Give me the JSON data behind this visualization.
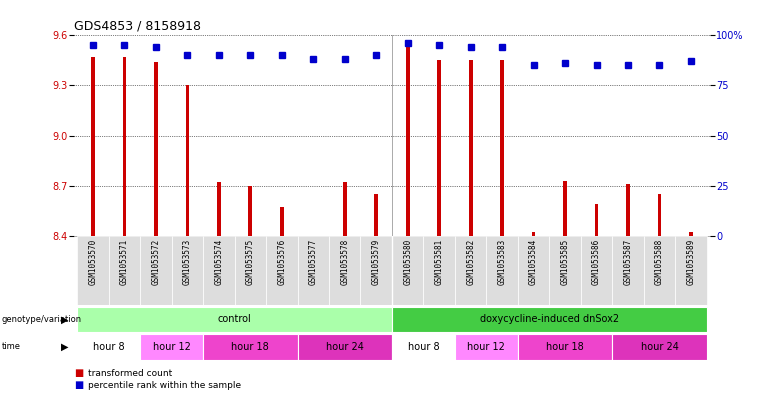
{
  "title": "GDS4853 / 8158918",
  "samples": [
    "GSM1053570",
    "GSM1053571",
    "GSM1053572",
    "GSM1053573",
    "GSM1053574",
    "GSM1053575",
    "GSM1053576",
    "GSM1053577",
    "GSM1053578",
    "GSM1053579",
    "GSM1053580",
    "GSM1053581",
    "GSM1053582",
    "GSM1053583",
    "GSM1053584",
    "GSM1053585",
    "GSM1053586",
    "GSM1053587",
    "GSM1053588",
    "GSM1053589"
  ],
  "red_values": [
    9.47,
    9.47,
    9.44,
    9.3,
    8.72,
    8.7,
    8.57,
    8.4,
    8.72,
    8.65,
    9.57,
    9.45,
    9.45,
    9.45,
    8.42,
    8.73,
    8.59,
    8.71,
    8.65,
    8.42
  ],
  "blue_values": [
    95,
    95,
    94,
    90,
    90,
    90,
    90,
    88,
    88,
    90,
    96,
    95,
    94,
    94,
    85,
    86,
    85,
    85,
    85,
    87
  ],
  "ylim_left": [
    8.4,
    9.6
  ],
  "ylim_right": [
    0,
    100
  ],
  "yticks_left": [
    8.4,
    8.7,
    9.0,
    9.3,
    9.6
  ],
  "yticks_right": [
    0,
    25,
    50,
    75,
    100
  ],
  "bar_color": "#cc0000",
  "dot_color": "#0000cc",
  "grid_color": "#000000",
  "background_color": "#ffffff",
  "genotype_groups": [
    {
      "label": "control",
      "start": 0,
      "end": 9,
      "color": "#aaffaa"
    },
    {
      "label": "doxycycline-induced dnSox2",
      "start": 10,
      "end": 19,
      "color": "#44cc44"
    }
  ],
  "time_colors": {
    "hour 8": "#ffffff",
    "hour 12": "#ff88ff",
    "hour 18": "#ee44cc",
    "hour 24": "#dd33bb"
  },
  "time_groups": [
    {
      "label": "hour 8",
      "start": 0,
      "end": 1
    },
    {
      "label": "hour 12",
      "start": 2,
      "end": 3
    },
    {
      "label": "hour 18",
      "start": 4,
      "end": 6
    },
    {
      "label": "hour 24",
      "start": 7,
      "end": 9
    },
    {
      "label": "hour 8",
      "start": 10,
      "end": 11
    },
    {
      "label": "hour 12",
      "start": 12,
      "end": 13
    },
    {
      "label": "hour 18",
      "start": 14,
      "end": 16
    },
    {
      "label": "hour 24",
      "start": 17,
      "end": 19
    }
  ],
  "legend_items": [
    {
      "label": "transformed count",
      "color": "#cc0000"
    },
    {
      "label": "percentile rank within the sample",
      "color": "#0000cc"
    }
  ],
  "bar_width": 0.12,
  "dot_size": 4,
  "title_fontsize": 9,
  "tick_fontsize": 7,
  "label_fontsize": 7,
  "sample_fontsize": 5.5
}
